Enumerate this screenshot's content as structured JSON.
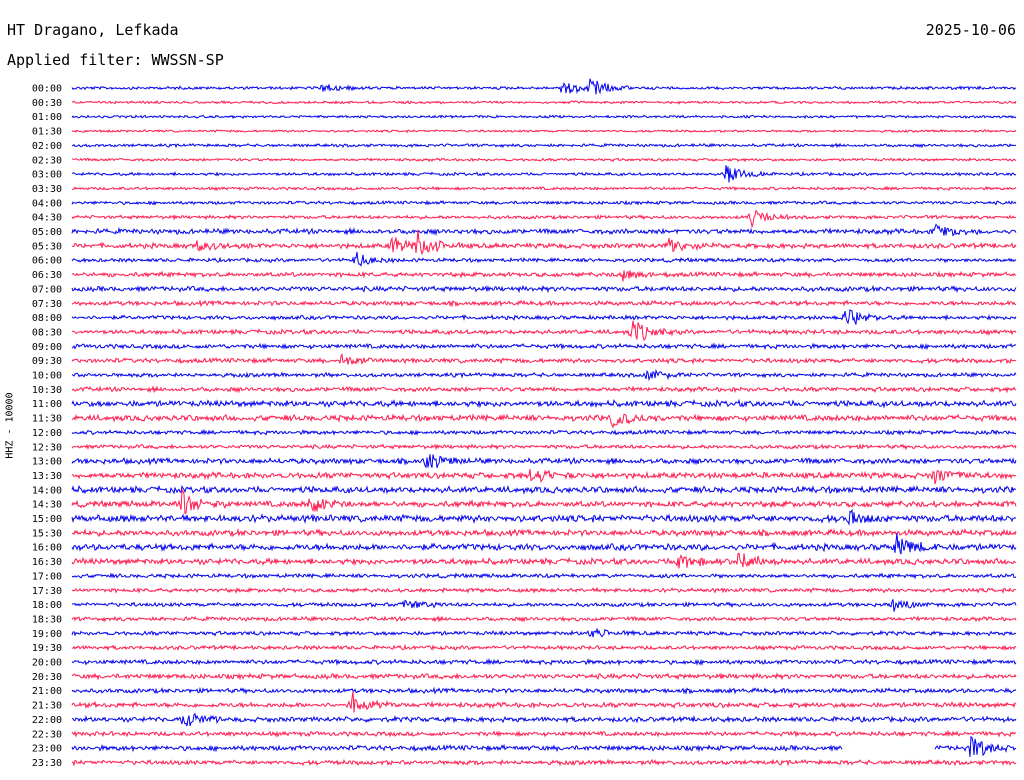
{
  "header": {
    "station": "HT Dragano, Lefkada",
    "date": "2025-10-06",
    "filter": "Applied filter: WWSSN-SP"
  },
  "channel_label": "HHZ - 10000",
  "colors": {
    "even_trace": "#0000ee",
    "odd_trace": "#ff1a4d"
  },
  "chart_data": {
    "type": "line",
    "title": "HT Dragano, Lefkada",
    "subtitle": "Applied filter: WWSSN-SP",
    "ylabel": "HHZ - 10000",
    "xlabel": "",
    "grid": false,
    "rows": [
      "00:00",
      "00:30",
      "01:00",
      "01:30",
      "02:00",
      "02:30",
      "03:00",
      "03:30",
      "04:00",
      "04:30",
      "05:00",
      "05:30",
      "06:00",
      "06:30",
      "07:00",
      "07:30",
      "08:00",
      "08:30",
      "09:00",
      "09:30",
      "10:00",
      "10:30",
      "11:00",
      "11:30",
      "12:00",
      "12:30",
      "13:00",
      "13:30",
      "14:00",
      "14:30",
      "15:00",
      "15:30",
      "16:00",
      "16:30",
      "17:00",
      "17:30",
      "18:00",
      "18:30",
      "19:00",
      "19:30",
      "20:00",
      "20:30",
      "21:00",
      "21:30",
      "22:00",
      "22:30",
      "23:00",
      "23:30"
    ],
    "noise_level": [
      1.2,
      1.0,
      1.0,
      0.9,
      1.2,
      1.1,
      1.2,
      1.2,
      1.3,
      1.4,
      2.0,
      2.0,
      1.5,
      1.8,
      2.0,
      1.8,
      1.6,
      1.8,
      1.8,
      1.8,
      1.6,
      1.8,
      2.4,
      2.4,
      1.6,
      1.6,
      2.2,
      2.4,
      2.6,
      2.4,
      2.8,
      2.4,
      2.6,
      2.4,
      1.6,
      1.6,
      1.6,
      1.6,
      1.6,
      1.6,
      1.8,
      2.0,
      1.8,
      2.0,
      2.0,
      1.8,
      2.0,
      1.8
    ],
    "events": [
      {
        "row": "00:00",
        "minute": 8,
        "amplitude": 5
      },
      {
        "row": "00:00",
        "minute": 15.6,
        "amplitude": 10
      },
      {
        "row": "00:00",
        "minute": 16.5,
        "amplitude": 12
      },
      {
        "row": "03:00",
        "minute": 20.8,
        "amplitude": 14
      },
      {
        "row": "04:30",
        "minute": 21.6,
        "amplitude": 10
      },
      {
        "row": "05:00",
        "minute": 27.5,
        "amplitude": 8
      },
      {
        "row": "05:30",
        "minute": 4,
        "amplitude": 6
      },
      {
        "row": "05:30",
        "minute": 10.2,
        "amplitude": 10
      },
      {
        "row": "05:30",
        "minute": 11,
        "amplitude": 14
      },
      {
        "row": "05:30",
        "minute": 19,
        "amplitude": 8
      },
      {
        "row": "06:00",
        "minute": 9,
        "amplitude": 8
      },
      {
        "row": "06:30",
        "minute": 17.5,
        "amplitude": 6
      },
      {
        "row": "08:00",
        "minute": 24.6,
        "amplitude": 12
      },
      {
        "row": "08:30",
        "minute": 17.8,
        "amplitude": 14
      },
      {
        "row": "09:30",
        "minute": 8.6,
        "amplitude": 7
      },
      {
        "row": "10:00",
        "minute": 18.3,
        "amplitude": 8
      },
      {
        "row": "11:30",
        "minute": 17.2,
        "amplitude": 9
      },
      {
        "row": "13:00",
        "minute": 11.3,
        "amplitude": 9
      },
      {
        "row": "13:30",
        "minute": 14.6,
        "amplitude": 9
      },
      {
        "row": "13:30",
        "minute": 27.4,
        "amplitude": 10
      },
      {
        "row": "14:30",
        "minute": 3.5,
        "amplitude": 14
      },
      {
        "row": "14:30",
        "minute": 7.5,
        "amplitude": 12
      },
      {
        "row": "15:00",
        "minute": 24.6,
        "amplitude": 8
      },
      {
        "row": "16:00",
        "minute": 26.2,
        "amplitude": 12
      },
      {
        "row": "16:30",
        "minute": 19.3,
        "amplitude": 9
      },
      {
        "row": "16:30",
        "minute": 21.2,
        "amplitude": 10
      },
      {
        "row": "18:00",
        "minute": 10.6,
        "amplitude": 6
      },
      {
        "row": "18:00",
        "minute": 26.1,
        "amplitude": 7
      },
      {
        "row": "19:00",
        "minute": 16.5,
        "amplitude": 5
      },
      {
        "row": "21:30",
        "minute": 8.9,
        "amplitude": 14
      },
      {
        "row": "22:00",
        "minute": 3.6,
        "amplitude": 9
      },
      {
        "row": "23:00",
        "minute": 28.6,
        "amplitude": 14
      }
    ],
    "gaps": [
      {
        "row": "23:00",
        "start_minute": 24.5,
        "end_minute": 27.4
      }
    ]
  }
}
